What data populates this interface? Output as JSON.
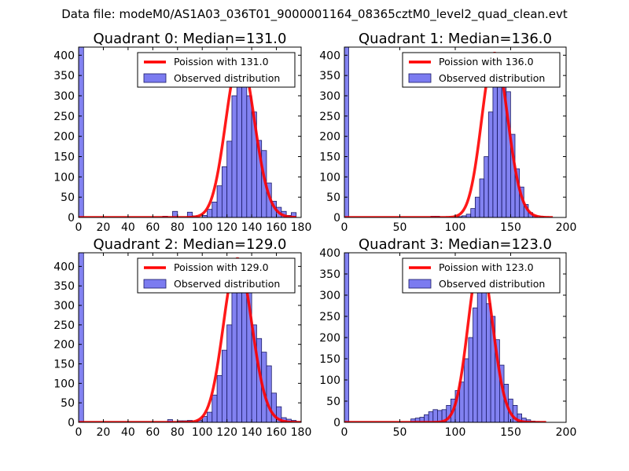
{
  "figure": {
    "title": "Data file: modeM0/AS1A03_036T01_9000001164_08365cztM0_level2_quad_clean.evt"
  },
  "colors": {
    "bar_fill": "#7b7bf0",
    "bar_stroke": "#1a1a66",
    "poisson_line": "#ff0000"
  },
  "chart_data": [
    {
      "type": "bar",
      "title": "Quadrant 0: Median=131.0",
      "xlim": [
        0,
        180
      ],
      "ylim": [
        0,
        420
      ],
      "xticks": [
        0,
        20,
        40,
        60,
        80,
        100,
        120,
        140,
        160,
        180
      ],
      "yticks": [
        0,
        50,
        100,
        150,
        200,
        250,
        300,
        350,
        400
      ],
      "bin_width": 4,
      "bins": [
        [
          0,
          420
        ],
        [
          68,
          3
        ],
        [
          76,
          15
        ],
        [
          88,
          13
        ],
        [
          92,
          4
        ],
        [
          100,
          5
        ],
        [
          104,
          20
        ],
        [
          108,
          38
        ],
        [
          112,
          78
        ],
        [
          116,
          125
        ],
        [
          120,
          188
        ],
        [
          124,
          300
        ],
        [
          128,
          340
        ],
        [
          132,
          395
        ],
        [
          136,
          300
        ],
        [
          140,
          260
        ],
        [
          144,
          190
        ],
        [
          148,
          165
        ],
        [
          152,
          85
        ],
        [
          156,
          40
        ],
        [
          160,
          25
        ],
        [
          164,
          15
        ],
        [
          168,
          5
        ],
        [
          172,
          12
        ]
      ],
      "poisson": {
        "label": "Poission with 131.0",
        "mu": 131.0,
        "peak": 398,
        "range": [
          0,
          176
        ]
      },
      "hist_label": "Observed distribution",
      "legend_loc": "upper right"
    },
    {
      "type": "bar",
      "title": "Quadrant 1: Median=136.0",
      "xlim": [
        0,
        200
      ],
      "ylim": [
        0,
        420
      ],
      "xticks": [
        0,
        50,
        100,
        150,
        200
      ],
      "yticks": [
        0,
        50,
        100,
        150,
        200,
        250,
        300,
        350,
        400
      ],
      "bin_width": 3.9,
      "bins": [
        [
          0,
          420
        ],
        [
          78,
          3
        ],
        [
          82,
          3
        ],
        [
          102,
          2
        ],
        [
          106,
          4
        ],
        [
          110,
          8
        ],
        [
          114,
          22
        ],
        [
          118,
          50
        ],
        [
          122,
          95
        ],
        [
          126,
          150
        ],
        [
          130,
          260
        ],
        [
          134,
          345
        ],
        [
          138,
          385
        ],
        [
          142,
          380
        ],
        [
          146,
          310
        ],
        [
          150,
          205
        ],
        [
          154,
          120
        ],
        [
          158,
          75
        ],
        [
          162,
          32
        ],
        [
          166,
          12
        ],
        [
          170,
          4
        ],
        [
          176,
          2
        ]
      ],
      "poisson": {
        "label": "Poission with 136.0",
        "mu": 136.0,
        "peak": 405,
        "range": [
          0,
          188
        ]
      },
      "hist_label": "Observed distribution",
      "legend_loc": "upper right"
    },
    {
      "type": "bar",
      "title": "Quadrant 2: Median=129.0",
      "xlim": [
        0,
        180
      ],
      "ylim": [
        0,
        435
      ],
      "xticks": [
        0,
        20,
        40,
        60,
        80,
        100,
        120,
        140,
        160,
        180
      ],
      "yticks": [
        0,
        50,
        100,
        150,
        200,
        250,
        300,
        350,
        400
      ],
      "bin_width": 4,
      "bins": [
        [
          0,
          435
        ],
        [
          72,
          7
        ],
        [
          80,
          4
        ],
        [
          84,
          4
        ],
        [
          88,
          5
        ],
        [
          96,
          5
        ],
        [
          100,
          15
        ],
        [
          104,
          26
        ],
        [
          108,
          70
        ],
        [
          112,
          120
        ],
        [
          116,
          185
        ],
        [
          120,
          250
        ],
        [
          124,
          335
        ],
        [
          128,
          395
        ],
        [
          132,
          340
        ],
        [
          136,
          340
        ],
        [
          140,
          250
        ],
        [
          144,
          215
        ],
        [
          148,
          180
        ],
        [
          152,
          145
        ],
        [
          156,
          75
        ],
        [
          160,
          40
        ],
        [
          164,
          12
        ],
        [
          168,
          8
        ],
        [
          172,
          5
        ],
        [
          176,
          2
        ]
      ],
      "poisson": {
        "label": "Poission with 129.0",
        "mu": 129.0,
        "peak": 420,
        "range": [
          0,
          182
        ]
      },
      "hist_label": "Observed distribution",
      "legend_loc": "upper right"
    },
    {
      "type": "bar",
      "title": "Quadrant 3: Median=123.0",
      "xlim": [
        0,
        200
      ],
      "ylim": [
        0,
        400
      ],
      "xticks": [
        0,
        50,
        100,
        150,
        200
      ],
      "yticks": [
        0,
        50,
        100,
        150,
        200,
        250,
        300,
        350,
        400
      ],
      "bin_width": 4,
      "bins": [
        [
          0,
          400
        ],
        [
          60,
          8
        ],
        [
          64,
          10
        ],
        [
          68,
          12
        ],
        [
          72,
          18
        ],
        [
          76,
          25
        ],
        [
          80,
          30
        ],
        [
          84,
          28
        ],
        [
          88,
          30
        ],
        [
          92,
          40
        ],
        [
          96,
          55
        ],
        [
          100,
          75
        ],
        [
          104,
          95
        ],
        [
          108,
          150
        ],
        [
          112,
          200
        ],
        [
          116,
          270
        ],
        [
          120,
          370
        ],
        [
          124,
          350
        ],
        [
          128,
          280
        ],
        [
          132,
          250
        ],
        [
          136,
          195
        ],
        [
          140,
          135
        ],
        [
          144,
          90
        ],
        [
          148,
          55
        ],
        [
          152,
          40
        ],
        [
          156,
          20
        ],
        [
          160,
          10
        ],
        [
          164,
          6
        ],
        [
          168,
          3
        ],
        [
          172,
          2
        ]
      ],
      "poisson": {
        "label": "Poission with 123.0",
        "mu": 123.0,
        "peak": 382,
        "range": [
          0,
          182
        ]
      },
      "hist_label": "Observed distribution",
      "legend_loc": "upper right"
    }
  ]
}
